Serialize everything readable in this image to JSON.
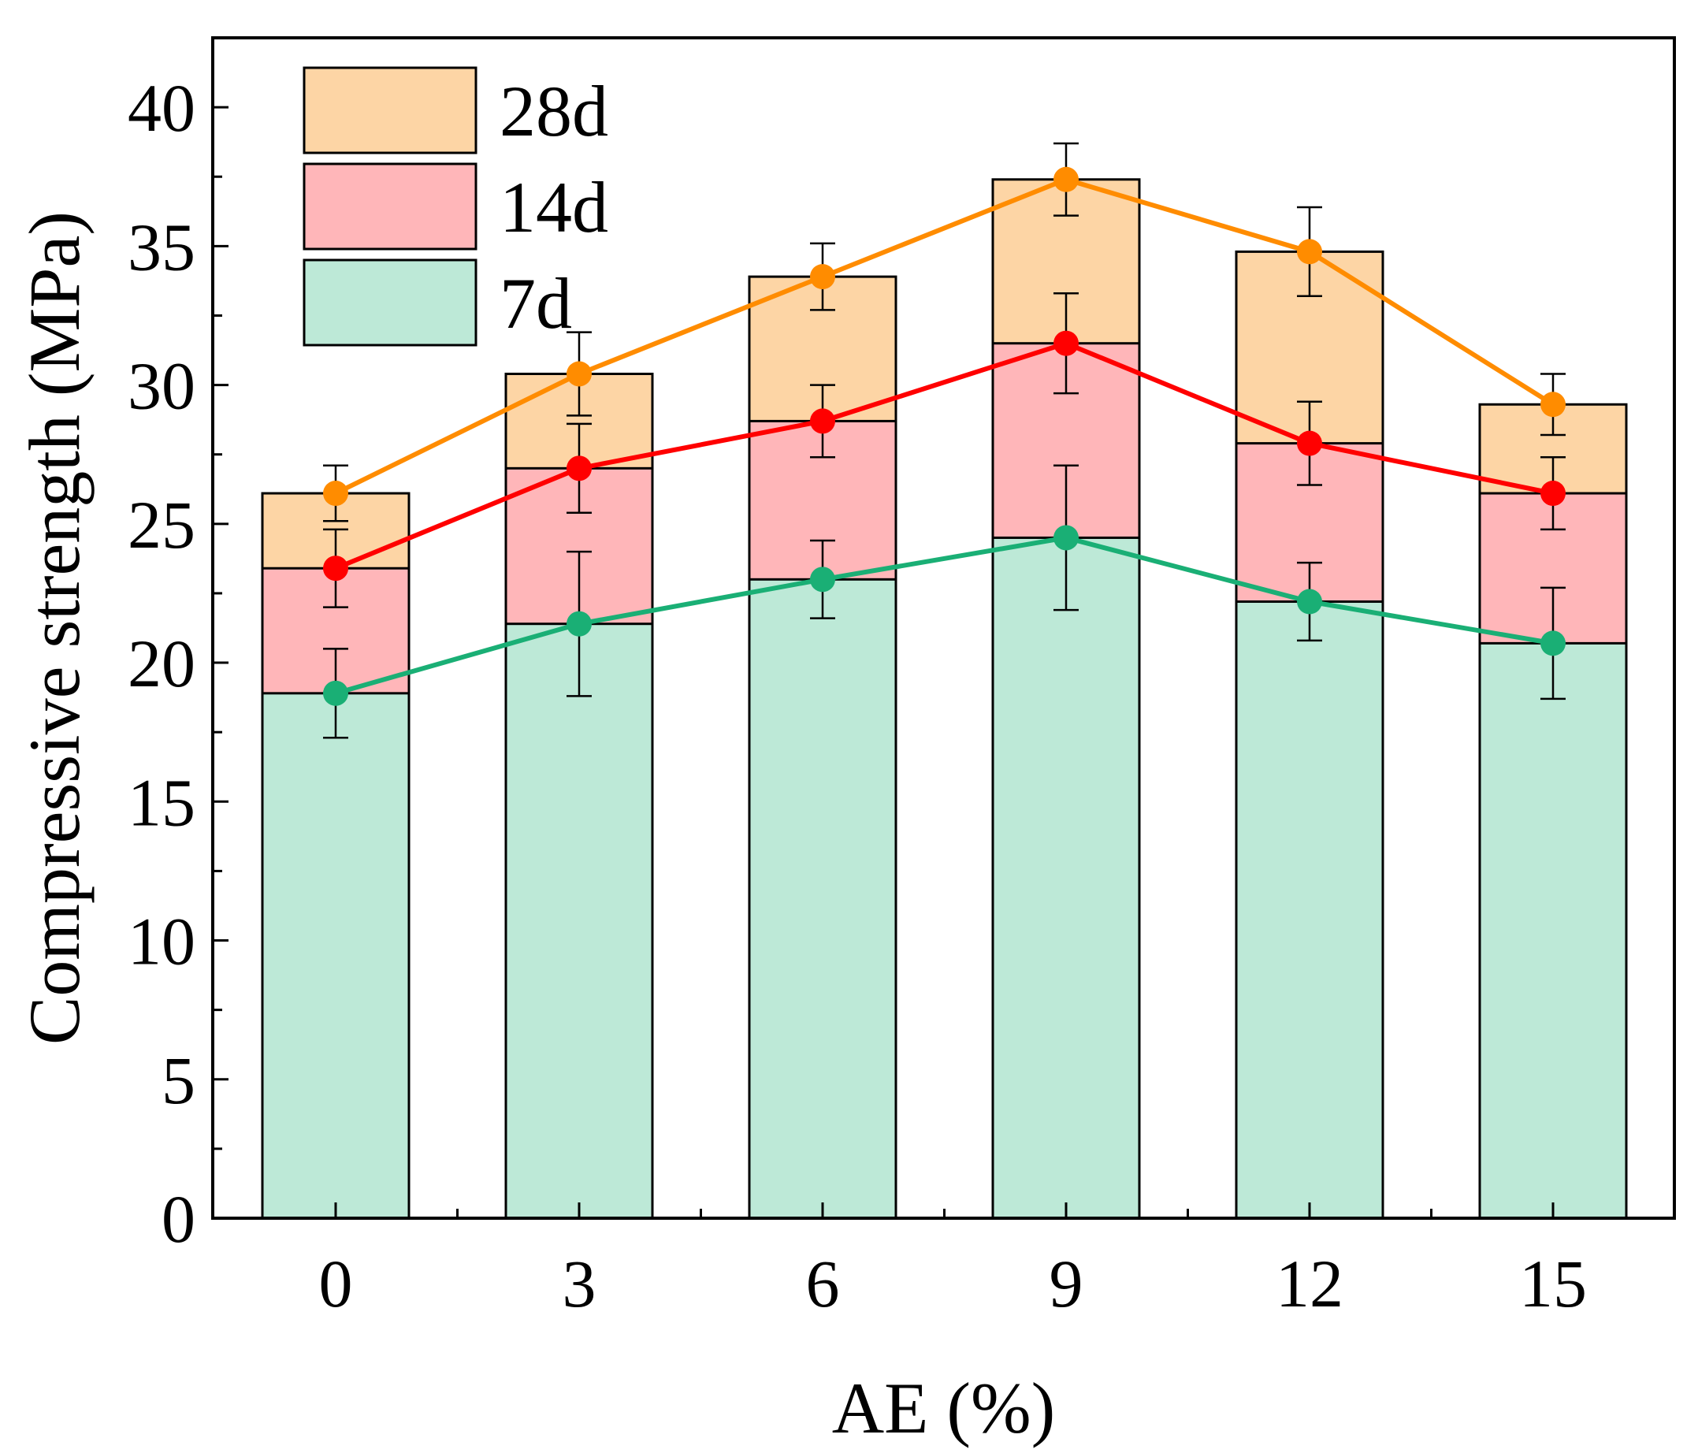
{
  "chart_data": {
    "type": "bar",
    "stacked_visual": true,
    "xlabel": "AE (%)",
    "ylabel": "Compressive strength (MPa)",
    "categories": [
      "0",
      "3",
      "6",
      "9",
      "12",
      "15"
    ],
    "ylim": [
      0,
      42.5
    ],
    "yticks": [
      0,
      5,
      10,
      15,
      20,
      25,
      30,
      35,
      40
    ],
    "ytick_labels": [
      "0",
      "5",
      "10",
      "15",
      "20",
      "25",
      "30",
      "35",
      "40"
    ],
    "grid": false,
    "legend_position": "top-left",
    "series": [
      {
        "name": "28d",
        "values": [
          26.1,
          30.4,
          33.9,
          37.4,
          34.8,
          29.3
        ],
        "errors": [
          1.0,
          1.5,
          1.2,
          1.3,
          1.6,
          1.1
        ],
        "fill_color": "#fdd5a5",
        "line_color": "#ff8c00"
      },
      {
        "name": "14d",
        "values": [
          23.4,
          27.0,
          28.7,
          31.5,
          27.9,
          26.1
        ],
        "errors": [
          1.4,
          1.6,
          1.3,
          1.8,
          1.5,
          1.3
        ],
        "fill_color": "#ffb6b9",
        "line_color": "#ff0000"
      },
      {
        "name": "7d",
        "values": [
          18.9,
          21.4,
          23.0,
          24.5,
          22.2,
          20.7
        ],
        "errors": [
          1.6,
          2.6,
          1.4,
          2.6,
          1.4,
          2.0
        ],
        "fill_color": "#bde9d7",
        "line_color": "#1aaf75"
      }
    ]
  }
}
